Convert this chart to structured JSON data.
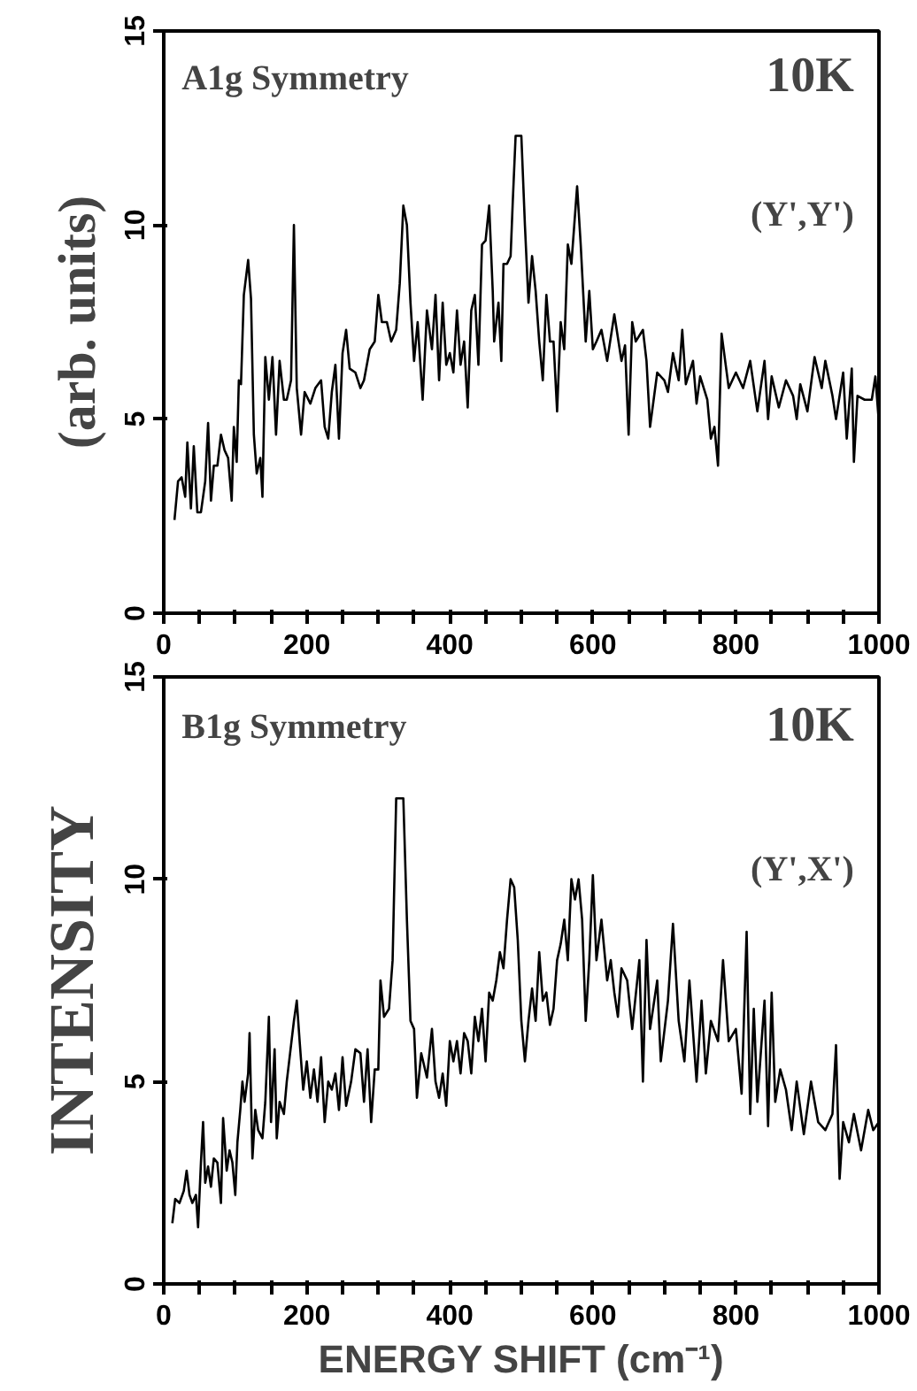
{
  "chart_data": [
    {
      "type": "line",
      "title": "A1g Symmetry",
      "ylabel": "(arb. units)",
      "annotations": [
        "10K",
        "(Y',Y')"
      ],
      "xlim": [
        0,
        1000
      ],
      "ylim": [
        0,
        15
      ],
      "xticks": [
        0,
        {
          "value": 50,
          "label": null
        },
        {
          "value": 100,
          "label": null
        },
        {
          "value": 150,
          "label": null
        },
        200,
        {
          "value": 250,
          "label": null
        },
        {
          "value": 300,
          "label": null
        },
        {
          "value": 350,
          "label": null
        },
        400,
        {
          "value": 450,
          "label": null
        },
        {
          "value": 500,
          "label": null
        },
        {
          "value": 550,
          "label": null
        },
        600,
        {
          "value": 650,
          "label": null
        },
        {
          "value": 700,
          "label": null
        },
        {
          "value": 750,
          "label": null
        },
        800,
        {
          "value": 850,
          "label": null
        },
        {
          "value": 900,
          "label": null
        },
        {
          "value": 950,
          "label": null
        },
        1000
      ],
      "yticks": [
        0,
        5,
        10,
        15
      ],
      "grid": false,
      "line_style": "solid",
      "series": [
        {
          "color": "#000000",
          "x": [
            15,
            20,
            25,
            30,
            33,
            38,
            42,
            47,
            52,
            58,
            62,
            66,
            70,
            75,
            80,
            85,
            90,
            95,
            98,
            102,
            105,
            108,
            112,
            118,
            122,
            126,
            130,
            135,
            138,
            142,
            147,
            152,
            157,
            162,
            168,
            172,
            178,
            182,
            186,
            192,
            197,
            205,
            212,
            220,
            225,
            230,
            235,
            240,
            245,
            250,
            255,
            260,
            268,
            275,
            280,
            288,
            295,
            300,
            305,
            312,
            318,
            325,
            330,
            335,
            340,
            345,
            350,
            355,
            362,
            368,
            375,
            380,
            385,
            390,
            395,
            400,
            405,
            410,
            415,
            420,
            425,
            430,
            435,
            440,
            445,
            450,
            455,
            460,
            462,
            468,
            472,
            475,
            480,
            485,
            488,
            492,
            500,
            505,
            510,
            515,
            520,
            525,
            530,
            535,
            540,
            545,
            550,
            555,
            560,
            565,
            570,
            578,
            583,
            590,
            595,
            600,
            605,
            612,
            620,
            630,
            640,
            645,
            650,
            655,
            660,
            670,
            675,
            680,
            690,
            700,
            705,
            712,
            720,
            725,
            730,
            740,
            745,
            750,
            760,
            765,
            770,
            775,
            780,
            790,
            800,
            810,
            820,
            830,
            840,
            845,
            850,
            860,
            870,
            880,
            885,
            890,
            900,
            910,
            920,
            925,
            935,
            940,
            950,
            955,
            962,
            965,
            970,
            980,
            990,
            995,
            1000
          ],
          "values": [
            2.4,
            3.4,
            3.5,
            3.0,
            4.4,
            2.7,
            4.3,
            2.6,
            2.6,
            3.4,
            4.9,
            2.9,
            3.8,
            3.8,
            4.6,
            4.2,
            4.0,
            2.9,
            4.8,
            3.9,
            6.0,
            5.9,
            8.2,
            9.1,
            8.1,
            4.6,
            3.6,
            4.0,
            3.0,
            6.6,
            5.5,
            6.6,
            4.6,
            6.5,
            5.5,
            5.5,
            6.0,
            10.0,
            5.8,
            4.6,
            5.7,
            5.4,
            5.8,
            6.0,
            4.8,
            4.5,
            5.7,
            6.4,
            4.5,
            6.7,
            7.3,
            6.3,
            6.2,
            5.8,
            6.0,
            6.8,
            7.0,
            8.2,
            7.5,
            7.5,
            7.0,
            7.3,
            8.5,
            10.5,
            10.0,
            8.0,
            6.5,
            7.5,
            5.5,
            7.8,
            6.8,
            8.2,
            6.0,
            8.0,
            6.4,
            6.7,
            6.2,
            7.8,
            6.4,
            7.0,
            5.3,
            7.8,
            8.2,
            6.4,
            9.5,
            9.6,
            10.5,
            8.3,
            7.0,
            8.0,
            6.5,
            9.0,
            9.0,
            9.2,
            10.6,
            12.3,
            12.3,
            10.0,
            8.0,
            9.2,
            8.3,
            7.0,
            6.0,
            8.2,
            7.0,
            7.0,
            5.2,
            7.5,
            6.8,
            9.5,
            9.0,
            11.0,
            9.5,
            7.0,
            8.3,
            6.8,
            7.0,
            7.3,
            6.5,
            7.7,
            6.5,
            6.9,
            4.6,
            7.5,
            7.0,
            7.3,
            6.5,
            4.8,
            6.2,
            6.0,
            5.7,
            6.7,
            6.0,
            7.3,
            5.9,
            6.5,
            5.4,
            6.1,
            5.5,
            4.5,
            4.8,
            3.8,
            7.2,
            5.8,
            6.2,
            5.8,
            6.5,
            5.2,
            6.5,
            5.0,
            6.1,
            5.3,
            6.0,
            5.6,
            5.0,
            5.9,
            5.2,
            6.6,
            5.8,
            6.5,
            5.6,
            5.0,
            6.2,
            4.5,
            6.3,
            3.9,
            5.6,
            5.5,
            5.5,
            6.1,
            4.9
          ]
        }
      ]
    },
    {
      "type": "line",
      "title": "B1g Symmetry",
      "ylabel": "INTENSITY",
      "xlabel": "ENERGY SHIFT (cm⁻¹)",
      "annotations": [
        "10K",
        "(Y',X')"
      ],
      "xlim": [
        0,
        1000
      ],
      "ylim": [
        0,
        15
      ],
      "xticks": [
        0,
        {
          "value": 50,
          "label": null
        },
        {
          "value": 100,
          "label": null
        },
        {
          "value": 150,
          "label": null
        },
        200,
        {
          "value": 250,
          "label": null
        },
        {
          "value": 300,
          "label": null
        },
        {
          "value": 350,
          "label": null
        },
        400,
        {
          "value": 450,
          "label": null
        },
        {
          "value": 500,
          "label": null
        },
        {
          "value": 550,
          "label": null
        },
        600,
        {
          "value": 650,
          "label": null
        },
        {
          "value": 700,
          "label": null
        },
        {
          "value": 750,
          "label": null
        },
        800,
        {
          "value": 850,
          "label": null
        },
        {
          "value": 900,
          "label": null
        },
        {
          "value": 950,
          "label": null
        },
        1000
      ],
      "yticks": [
        0,
        5,
        10,
        15
      ],
      "grid": false,
      "line_style": "solid",
      "series": [
        {
          "color": "#000000",
          "x": [
            12,
            16,
            22,
            28,
            32,
            36,
            40,
            45,
            48,
            52,
            55,
            58,
            62,
            66,
            70,
            75,
            80,
            83,
            88,
            92,
            96,
            100,
            103,
            107,
            110,
            113,
            118,
            120,
            124,
            128,
            132,
            138,
            142,
            147,
            150,
            155,
            158,
            162,
            168,
            172,
            178,
            182,
            186,
            190,
            195,
            200,
            205,
            210,
            215,
            220,
            225,
            230,
            235,
            240,
            245,
            250,
            255,
            262,
            268,
            275,
            280,
            285,
            290,
            295,
            300,
            303,
            308,
            315,
            320,
            325,
            335,
            340,
            345,
            350,
            354,
            360,
            368,
            375,
            380,
            385,
            390,
            395,
            400,
            405,
            410,
            415,
            420,
            425,
            430,
            435,
            440,
            445,
            450,
            455,
            460,
            465,
            470,
            475,
            480,
            485,
            490,
            495,
            500,
            505,
            510,
            515,
            520,
            525,
            530,
            535,
            540,
            545,
            550,
            555,
            560,
            565,
            570,
            575,
            580,
            585,
            590,
            595,
            600,
            605,
            612,
            620,
            625,
            630,
            635,
            640,
            648,
            655,
            665,
            670,
            675,
            680,
            690,
            695,
            705,
            712,
            720,
            728,
            735,
            745,
            752,
            758,
            765,
            775,
            782,
            790,
            800,
            808,
            815,
            820,
            825,
            830,
            840,
            845,
            850,
            855,
            862,
            870,
            878,
            885,
            895,
            905,
            915,
            925,
            935,
            940,
            945,
            950,
            958,
            965,
            975,
            985,
            992,
            1000
          ],
          "values": [
            1.5,
            2.1,
            2.0,
            2.3,
            2.8,
            2.2,
            2.0,
            2.2,
            1.4,
            3.0,
            4.0,
            2.5,
            2.9,
            2.4,
            3.1,
            3.0,
            2.0,
            4.1,
            2.8,
            3.3,
            3.0,
            2.2,
            3.5,
            4.3,
            5.0,
            4.5,
            5.2,
            6.2,
            3.1,
            4.3,
            3.8,
            3.6,
            4.5,
            6.6,
            4.0,
            5.8,
            3.6,
            4.5,
            4.2,
            5.0,
            5.9,
            6.5,
            7.0,
            6.0,
            4.8,
            5.5,
            4.6,
            5.3,
            4.5,
            5.6,
            4.0,
            5.0,
            4.8,
            5.2,
            4.3,
            5.6,
            4.4,
            5.0,
            5.8,
            5.7,
            4.5,
            5.8,
            4.0,
            5.3,
            5.3,
            7.5,
            6.6,
            6.8,
            8.0,
            12.0,
            12.0,
            9.0,
            6.5,
            6.3,
            4.6,
            5.7,
            5.1,
            6.3,
            5.0,
            4.6,
            5.2,
            4.4,
            6.0,
            5.5,
            6.0,
            5.2,
            6.2,
            6.0,
            5.2,
            6.6,
            6.0,
            6.8,
            5.5,
            7.2,
            7.0,
            7.5,
            8.2,
            7.8,
            9.0,
            10.0,
            9.8,
            8.5,
            6.5,
            5.5,
            6.5,
            7.3,
            6.5,
            8.2,
            7.0,
            7.2,
            6.4,
            6.8,
            8.0,
            8.4,
            9.0,
            8.0,
            10.0,
            9.5,
            10.0,
            9.0,
            6.5,
            8.0,
            10.1,
            8.0,
            9.0,
            7.5,
            8.0,
            7.2,
            6.6,
            7.8,
            7.5,
            6.3,
            8.0,
            5.0,
            8.5,
            6.3,
            7.5,
            5.5,
            7.0,
            8.9,
            6.5,
            5.5,
            7.5,
            5.0,
            7.0,
            5.2,
            6.5,
            6.0,
            8.0,
            6.0,
            6.3,
            4.7,
            8.7,
            4.2,
            6.8,
            4.5,
            7.0,
            3.9,
            7.2,
            4.5,
            5.3,
            4.8,
            3.8,
            5.0,
            3.7,
            5.0,
            4.0,
            3.8,
            4.2,
            5.9,
            2.6,
            4.0,
            3.5,
            4.2,
            3.3,
            4.3,
            3.8,
            4.0
          ]
        }
      ]
    }
  ]
}
